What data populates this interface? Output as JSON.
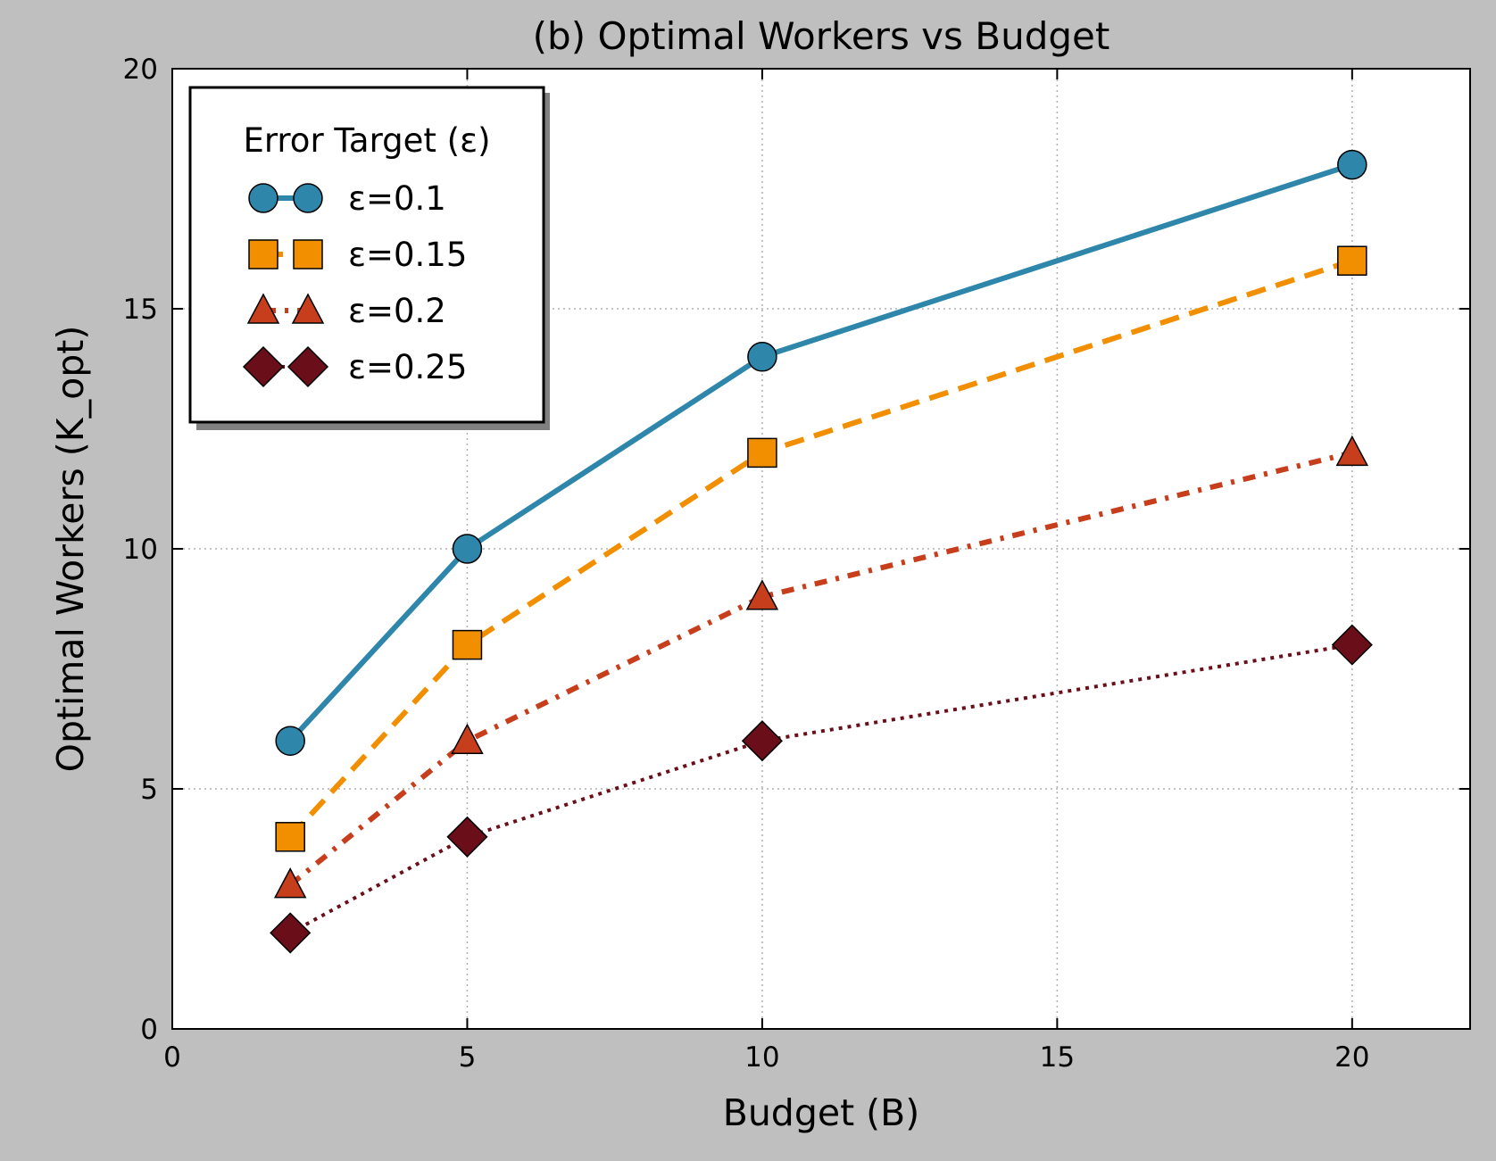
{
  "chart_data": {
    "type": "line",
    "title": "(b) Optimal Workers vs Budget",
    "xlabel": "Budget (B)",
    "ylabel": "Optimal Workers (K_opt)",
    "xlim": [
      0,
      22
    ],
    "ylim": [
      0,
      20
    ],
    "xticks": [
      0,
      5,
      10,
      15,
      20
    ],
    "yticks": [
      0,
      5,
      10,
      15,
      20
    ],
    "grid": true,
    "legend": {
      "title": "Error Target (ε)",
      "placement": "top-left"
    },
    "x": [
      2,
      5,
      10,
      20
    ],
    "series": [
      {
        "name": "ε=0.1",
        "values": [
          6,
          10,
          14,
          18
        ],
        "color": "#2e86ab",
        "marker": "circle",
        "linestyle": "solid"
      },
      {
        "name": "ε=0.15",
        "values": [
          4,
          8,
          12,
          16
        ],
        "color": "#f18f01",
        "marker": "square",
        "linestyle": "dashed"
      },
      {
        "name": "ε=0.2",
        "values": [
          3,
          6,
          9,
          12
        ],
        "color": "#c73e1d",
        "marker": "triangle",
        "linestyle": "dashdot"
      },
      {
        "name": "ε=0.25",
        "values": [
          2,
          4,
          6,
          8
        ],
        "color": "#6a0f1a",
        "marker": "diamond",
        "linestyle": "dotted"
      }
    ]
  }
}
